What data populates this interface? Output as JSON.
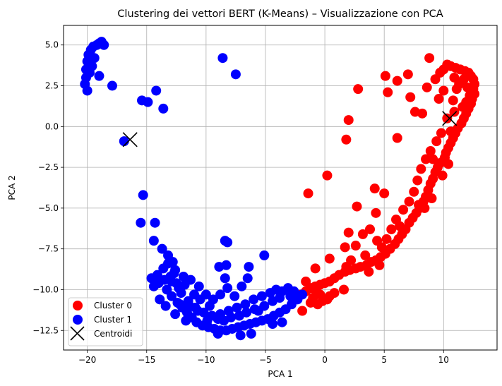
{
  "chart_data": {
    "type": "scatter",
    "title": "Clustering dei vettori BERT (K-Means) – Visualizzazione con PCA",
    "xlabel": "PCA 1",
    "ylabel": "PCA 2",
    "xlim": [
      -22,
      14.5
    ],
    "ylim": [
      -13.7,
      6.2
    ],
    "xticks": [
      -20,
      -15,
      -10,
      -5,
      0,
      5,
      10
    ],
    "xtick_labels": [
      "−20",
      "−15",
      "−10",
      "−5",
      "0",
      "5",
      "10"
    ],
    "yticks": [
      -12.5,
      -10.0,
      -7.5,
      -5.0,
      -2.5,
      0.0,
      2.5,
      5.0
    ],
    "ytick_labels": [
      "−12.5",
      "−10.0",
      "−7.5",
      "−5.0",
      "−2.5",
      "0.0",
      "2.5",
      "5.0"
    ],
    "grid": true,
    "legend_position": "lower-left",
    "series": [
      {
        "name": "Cluster 0",
        "color": "#ff0000",
        "marker": "circle",
        "points": [
          [
            8.8,
            4.2
          ],
          [
            10.3,
            3.8
          ],
          [
            10.6,
            3.7
          ],
          [
            11.0,
            3.6
          ],
          [
            11.4,
            3.5
          ],
          [
            11.8,
            3.4
          ],
          [
            12.1,
            3.3
          ],
          [
            12.3,
            3.1
          ],
          [
            12.5,
            2.9
          ],
          [
            12.6,
            2.6
          ],
          [
            12.5,
            2.3
          ],
          [
            12.6,
            2.0
          ],
          [
            12.4,
            1.7
          ],
          [
            12.3,
            1.4
          ],
          [
            12.1,
            1.1
          ],
          [
            11.9,
            0.8
          ],
          [
            11.7,
            0.5
          ],
          [
            11.5,
            0.2
          ],
          [
            11.2,
            -0.1
          ],
          [
            11.0,
            -0.4
          ],
          [
            10.8,
            -0.7
          ],
          [
            10.6,
            -1.0
          ],
          [
            10.4,
            -1.3
          ],
          [
            10.2,
            -1.6
          ],
          [
            10.1,
            -1.9
          ],
          [
            9.8,
            -2.2
          ],
          [
            9.5,
            -2.5
          ],
          [
            9.3,
            -2.8
          ],
          [
            9.1,
            -3.2
          ],
          [
            8.9,
            -3.5
          ],
          [
            8.7,
            -3.9
          ],
          [
            8.5,
            -4.3
          ],
          [
            8.3,
            -4.6
          ],
          [
            8.0,
            -5.0
          ],
          [
            7.7,
            -5.3
          ],
          [
            7.4,
            -5.6
          ],
          [
            7.1,
            -5.9
          ],
          [
            6.8,
            -6.3
          ],
          [
            6.5,
            -6.6
          ],
          [
            6.2,
            -6.9
          ],
          [
            5.9,
            -7.2
          ],
          [
            5.5,
            -7.5
          ],
          [
            5.1,
            -7.8
          ],
          [
            4.7,
            -8.0
          ],
          [
            4.3,
            -8.2
          ],
          [
            3.9,
            -8.3
          ],
          [
            3.5,
            -8.5
          ],
          [
            3.0,
            -8.6
          ],
          [
            2.6,
            -8.7
          ],
          [
            2.1,
            -8.8
          ],
          [
            1.7,
            -8.9
          ],
          [
            1.2,
            -9.1
          ],
          [
            0.8,
            -9.3
          ],
          [
            0.4,
            -9.5
          ],
          [
            0.0,
            -9.6
          ],
          [
            -0.4,
            -9.7
          ],
          [
            -0.8,
            -9.8
          ],
          [
            -1.2,
            -9.9
          ],
          [
            -1.6,
            -10.1
          ],
          [
            -2.0,
            -10.3
          ],
          [
            1.6,
            -10.0
          ],
          [
            0.8,
            -10.2
          ],
          [
            0.4,
            -10.4
          ],
          [
            -0.2,
            -10.7
          ],
          [
            -0.6,
            -10.9
          ],
          [
            -1.0,
            -10.5
          ],
          [
            -1.9,
            -11.3
          ],
          [
            0.2,
            -10.6
          ],
          [
            -1.2,
            -10.8
          ],
          [
            -0.8,
            -10.0
          ],
          [
            2.8,
            2.3
          ],
          [
            2.0,
            0.4
          ],
          [
            1.8,
            -0.8
          ],
          [
            0.2,
            -3.0
          ],
          [
            -1.4,
            -4.1
          ],
          [
            4.2,
            -3.8
          ],
          [
            5.0,
            -4.1
          ],
          [
            2.7,
            -4.9
          ],
          [
            4.3,
            -5.3
          ],
          [
            5.1,
            3.1
          ],
          [
            5.3,
            2.1
          ],
          [
            6.1,
            2.8
          ],
          [
            7.0,
            3.2
          ],
          [
            7.2,
            1.8
          ],
          [
            7.6,
            0.9
          ],
          [
            8.2,
            0.8
          ],
          [
            6.1,
            -0.7
          ],
          [
            8.6,
            2.4
          ],
          [
            9.3,
            2.9
          ],
          [
            9.6,
            1.7
          ],
          [
            10.0,
            2.2
          ],
          [
            10.8,
            1.6
          ],
          [
            11.3,
            2.6
          ],
          [
            12.0,
            2.4
          ],
          [
            11.6,
            1.2
          ],
          [
            10.9,
            0.9
          ],
          [
            10.3,
            0.5
          ],
          [
            9.8,
            -0.4
          ],
          [
            9.4,
            -0.9
          ],
          [
            8.9,
            -1.5
          ],
          [
            8.5,
            -2.0
          ],
          [
            8.1,
            -2.6
          ],
          [
            7.8,
            -3.3
          ],
          [
            7.5,
            -4.0
          ],
          [
            7.1,
            -4.6
          ],
          [
            6.6,
            -5.1
          ],
          [
            6.0,
            -5.7
          ],
          [
            5.6,
            -6.3
          ],
          [
            5.2,
            -6.9
          ],
          [
            4.8,
            -7.4
          ],
          [
            4.4,
            -7.0
          ],
          [
            3.8,
            -6.3
          ],
          [
            3.2,
            -6.6
          ],
          [
            2.6,
            -7.3
          ],
          [
            2.0,
            -6.5
          ],
          [
            1.7,
            -7.4
          ],
          [
            3.4,
            -7.9
          ],
          [
            2.2,
            -8.2
          ],
          [
            4.6,
            -8.5
          ],
          [
            1.8,
            -8.6
          ],
          [
            -0.8,
            -8.7
          ],
          [
            0.4,
            -8.1
          ],
          [
            9.7,
            3.3
          ],
          [
            10.9,
            3.0
          ],
          [
            11.7,
            2.9
          ],
          [
            12.2,
            1.9
          ],
          [
            10.4,
            -2.3
          ],
          [
            9.9,
            -3.0
          ],
          [
            9.0,
            -4.4
          ],
          [
            8.4,
            -5.0
          ],
          [
            10.0,
            3.5
          ],
          [
            11.1,
            2.3
          ],
          [
            11.9,
            1.5
          ],
          [
            10.6,
            -0.3
          ],
          [
            9.1,
            -2.0
          ],
          [
            7.9,
            -4.8
          ],
          [
            6.3,
            -6.1
          ],
          [
            3.7,
            -8.9
          ],
          [
            -0.4,
            -10.3
          ],
          [
            -1.6,
            -9.5
          ]
        ]
      },
      {
        "name": "Cluster 1",
        "color": "#0000ff",
        "marker": "circle",
        "points": [
          [
            -20.1,
            3.5
          ],
          [
            -20.0,
            4.0
          ],
          [
            -19.9,
            4.4
          ],
          [
            -19.7,
            4.7
          ],
          [
            -19.5,
            4.9
          ],
          [
            -19.2,
            5.0
          ],
          [
            -19.0,
            5.1
          ],
          [
            -18.8,
            5.2
          ],
          [
            -18.6,
            5.0
          ],
          [
            -20.0,
            2.2
          ],
          [
            -20.2,
            2.6
          ],
          [
            -20.1,
            3.0
          ],
          [
            -19.8,
            3.3
          ],
          [
            -19.6,
            3.7
          ],
          [
            -19.4,
            4.2
          ],
          [
            -19.0,
            3.1
          ],
          [
            -17.9,
            2.5
          ],
          [
            -8.6,
            4.2
          ],
          [
            -7.5,
            3.2
          ],
          [
            -15.4,
            1.6
          ],
          [
            -14.9,
            1.5
          ],
          [
            -14.2,
            2.2
          ],
          [
            -13.6,
            1.1
          ],
          [
            -16.9,
            -0.9
          ],
          [
            -15.3,
            -4.2
          ],
          [
            -15.5,
            -5.9
          ],
          [
            -14.3,
            -5.9
          ],
          [
            -14.4,
            -7.0
          ],
          [
            -13.7,
            -7.5
          ],
          [
            -13.2,
            -7.9
          ],
          [
            -12.8,
            -8.3
          ],
          [
            -12.6,
            -8.8
          ],
          [
            -13.0,
            -9.2
          ],
          [
            -13.5,
            -9.4
          ],
          [
            -14.0,
            -9.6
          ],
          [
            -14.4,
            -9.8
          ],
          [
            -14.1,
            -9.1
          ],
          [
            -13.6,
            -8.7
          ],
          [
            -13.3,
            -10.0
          ],
          [
            -12.9,
            -10.4
          ],
          [
            -12.4,
            -10.8
          ],
          [
            -12.0,
            -11.1
          ],
          [
            -11.6,
            -11.4
          ],
          [
            -11.2,
            -11.7
          ],
          [
            -10.8,
            -12.0
          ],
          [
            -10.3,
            -12.2
          ],
          [
            -9.8,
            -12.3
          ],
          [
            -9.3,
            -12.4
          ],
          [
            -8.8,
            -12.5
          ],
          [
            -8.3,
            -12.5
          ],
          [
            -7.8,
            -12.4
          ],
          [
            -7.3,
            -12.3
          ],
          [
            -6.8,
            -12.2
          ],
          [
            -6.3,
            -12.1
          ],
          [
            -5.8,
            -12.0
          ],
          [
            -5.3,
            -11.9
          ],
          [
            -4.8,
            -11.8
          ],
          [
            -4.3,
            -11.6
          ],
          [
            -3.8,
            -11.4
          ],
          [
            -3.3,
            -11.2
          ],
          [
            -2.8,
            -10.9
          ],
          [
            -2.3,
            -10.6
          ],
          [
            -1.9,
            -10.3
          ],
          [
            -2.6,
            -10.1
          ],
          [
            -3.1,
            -9.9
          ],
          [
            -3.6,
            -10.1
          ],
          [
            -4.1,
            -10.0
          ],
          [
            -4.6,
            -10.2
          ],
          [
            -5.3,
            -10.4
          ],
          [
            -6.0,
            -10.6
          ],
          [
            -6.7,
            -10.9
          ],
          [
            -7.4,
            -11.1
          ],
          [
            -8.1,
            -11.3
          ],
          [
            -8.8,
            -11.5
          ],
          [
            -9.5,
            -11.6
          ],
          [
            -10.2,
            -11.4
          ],
          [
            -10.9,
            -11.1
          ],
          [
            -11.5,
            -10.7
          ],
          [
            -12.1,
            -10.2
          ],
          [
            -12.5,
            -9.6
          ],
          [
            -11.9,
            -9.2
          ],
          [
            -11.3,
            -9.4
          ],
          [
            -10.6,
            -9.8
          ],
          [
            -10.0,
            -10.3
          ],
          [
            -9.4,
            -10.6
          ],
          [
            -8.8,
            -10.3
          ],
          [
            -8.2,
            -9.9
          ],
          [
            -8.4,
            -9.3
          ],
          [
            -8.9,
            -8.6
          ],
          [
            -8.3,
            -8.5
          ],
          [
            -8.4,
            -7.0
          ],
          [
            -8.2,
            -7.1
          ],
          [
            -6.4,
            -8.6
          ],
          [
            -6.5,
            -9.3
          ],
          [
            -5.1,
            -7.9
          ],
          [
            -7.0,
            -9.8
          ],
          [
            -7.6,
            -10.4
          ],
          [
            -5.6,
            -11.3
          ],
          [
            -4.4,
            -12.1
          ],
          [
            -3.6,
            -12.0
          ],
          [
            -6.2,
            -12.7
          ],
          [
            -7.1,
            -12.8
          ],
          [
            -9.0,
            -12.7
          ],
          [
            -11.7,
            -11.9
          ],
          [
            -12.6,
            -11.5
          ],
          [
            -13.4,
            -11.0
          ],
          [
            -13.9,
            -10.6
          ],
          [
            -14.6,
            -9.3
          ],
          [
            -12.3,
            -9.9
          ],
          [
            -11.0,
            -10.3
          ],
          [
            -10.5,
            -10.6
          ],
          [
            -9.7,
            -11.0
          ],
          [
            -9.0,
            -11.8
          ],
          [
            -8.5,
            -11.9
          ],
          [
            -7.9,
            -11.7
          ],
          [
            -7.2,
            -11.6
          ],
          [
            -6.6,
            -11.4
          ],
          [
            -5.9,
            -11.2
          ],
          [
            -5.1,
            -11.0
          ],
          [
            -4.4,
            -10.7
          ],
          [
            -3.8,
            -10.5
          ],
          [
            -2.9,
            -10.4
          ],
          [
            -12.9,
            -9.5
          ],
          [
            -13.2,
            -8.4
          ],
          [
            -12.7,
            -9.0
          ],
          [
            -11.8,
            -9.7
          ],
          [
            -12.2,
            -10.9
          ],
          [
            -11.4,
            -11.0
          ],
          [
            -10.7,
            -11.3
          ],
          [
            -9.9,
            -11.9
          ]
        ]
      },
      {
        "name": "Centroidi",
        "color": "#000000",
        "marker": "x",
        "points": [
          [
            10.5,
            0.5
          ],
          [
            -16.4,
            -0.8
          ]
        ]
      }
    ]
  }
}
